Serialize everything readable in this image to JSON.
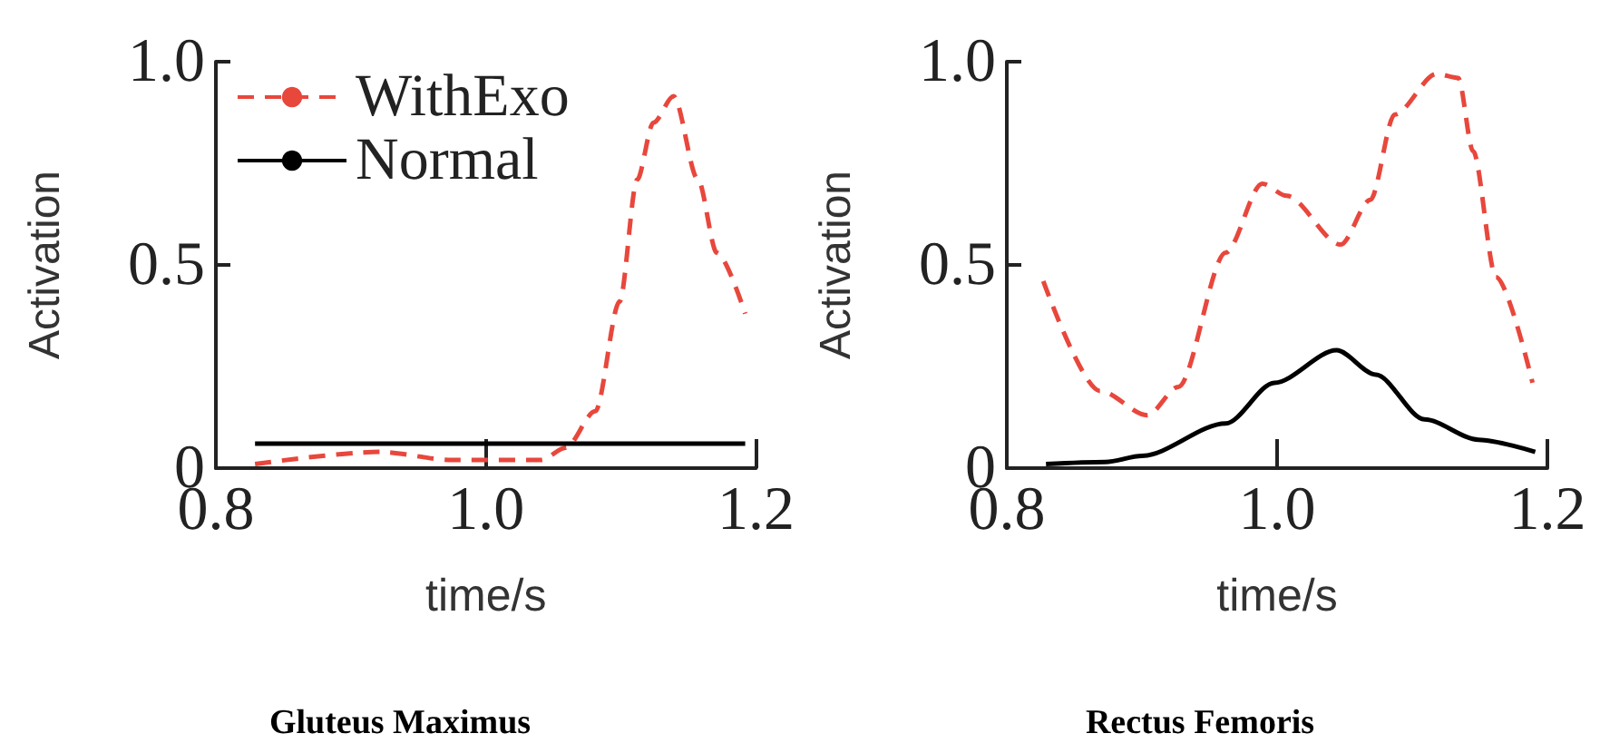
{
  "chart_data": [
    {
      "type": "line",
      "title": "Gluteus Maximus",
      "xlabel": "time/s",
      "ylabel": "Activation",
      "xlim": [
        0.8,
        1.2
      ],
      "xticks": [
        {
          "value": 0.8,
          "label": "0.8"
        },
        {
          "value": 1.0,
          "label": "1.0"
        },
        {
          "value": 1.2,
          "label": "1.2"
        }
      ],
      "ylim": [
        0,
        1
      ],
      "yticks": [
        {
          "value": 0,
          "label": "0"
        },
        {
          "value": 0.5,
          "label": "0.5"
        },
        {
          "value": 1.0,
          "label": "1.0"
        }
      ],
      "grid": false,
      "legend": "top left",
      "marker": "none",
      "series": [
        {
          "name": "WithExo",
          "color": "#e8473c",
          "line_style": "dashed",
          "x": [
            0.829,
            0.921,
            0.975,
            1.041,
            1.059,
            1.081,
            1.099,
            1.112,
            1.124,
            1.139,
            1.157,
            1.171,
            1.192
          ],
          "values": [
            0.01,
            0.04,
            0.02,
            0.02,
            0.05,
            0.14,
            0.41,
            0.71,
            0.85,
            0.915,
            0.71,
            0.53,
            0.38
          ]
        },
        {
          "name": "Normal",
          "color": "#000000",
          "line_style": "solid",
          "x": [
            0.829,
            1.192
          ],
          "values": [
            0.06,
            0.06
          ]
        }
      ]
    },
    {
      "type": "line",
      "title": "Rectus Femoris",
      "xlabel": "time/s",
      "ylabel": "Activation",
      "xlim": [
        0.8,
        1.2
      ],
      "xticks": [
        {
          "value": 0.8,
          "label": "0.8"
        },
        {
          "value": 1.0,
          "label": "1.0"
        },
        {
          "value": 1.2,
          "label": "1.2"
        }
      ],
      "ylim": [
        0,
        1
      ],
      "yticks": [
        {
          "value": 0,
          "label": "0"
        },
        {
          "value": 0.5,
          "label": "0.5"
        },
        {
          "value": 1.0,
          "label": "1.0"
        }
      ],
      "grid": false,
      "legend": false,
      "marker": "none",
      "series": [
        {
          "color": "#e8473c",
          "line_style": "dashed",
          "x": [
            0.827,
            0.869,
            0.904,
            0.927,
            0.962,
            0.989,
            1.007,
            1.047,
            1.069,
            1.087,
            1.118,
            1.134,
            1.145,
            1.162,
            1.189
          ],
          "values": [
            0.46,
            0.19,
            0.13,
            0.2,
            0.53,
            0.7,
            0.67,
            0.55,
            0.66,
            0.87,
            0.97,
            0.96,
            0.78,
            0.47,
            0.21
          ]
        },
        {
          "color": "#000000",
          "line_style": "solid",
          "x": [
            0.829,
            0.873,
            0.9,
            0.962,
            0.998,
            1.044,
            1.073,
            1.109,
            1.149,
            1.191
          ],
          "values": [
            0.01,
            0.015,
            0.03,
            0.11,
            0.21,
            0.29,
            0.23,
            0.12,
            0.07,
            0.04
          ]
        }
      ]
    }
  ]
}
